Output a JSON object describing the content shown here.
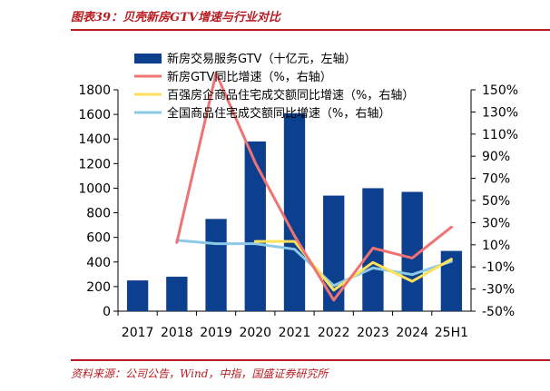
{
  "page": {
    "title": "图表39：贝壳新房GTV增速与行业对比",
    "source": "资料来源：公司公告，Wind，中指，国盛证券研究所"
  },
  "chart_data": {
    "type": "bar",
    "categories": [
      "2017",
      "2018",
      "2019",
      "2020",
      "2021",
      "2022",
      "2023",
      "2024",
      "25H1"
    ],
    "left_axis": {
      "min": 0,
      "max": 1800,
      "ticks": [
        "0",
        "200",
        "400",
        "600",
        "800",
        "1000",
        "1200",
        "1400",
        "1600",
        "1800"
      ]
    },
    "right_axis": {
      "min": -50,
      "max": 150,
      "ticks": [
        "-50%",
        "-30%",
        "-10%",
        "10%",
        "30%",
        "50%",
        "70%",
        "90%",
        "110%",
        "130%",
        "150%"
      ]
    },
    "series": [
      {
        "name": "新房交易服务GTV（十亿元，左轴）",
        "type": "bar",
        "axis": "left",
        "color": "#0d3f8f",
        "values": [
          250,
          280,
          750,
          1380,
          1610,
          940,
          1000,
          970,
          490
        ]
      },
      {
        "name": "新房GTV同比增速（%，右轴）",
        "type": "line",
        "axis": "right",
        "color": "#f07373",
        "values": [
          null,
          12,
          165,
          84,
          18,
          -40,
          7,
          -2,
          26
        ]
      },
      {
        "name": "百强房企商品住宅成交额同比增速（%，右轴）",
        "type": "line",
        "axis": "right",
        "color": "#ffe15a",
        "values": [
          null,
          null,
          null,
          13,
          13,
          -31,
          -6,
          -23,
          -3
        ]
      },
      {
        "name": "全国商品住宅成交额同比增速（%，右轴）",
        "type": "line",
        "axis": "right",
        "color": "#8cc9e6",
        "values": [
          null,
          14,
          11,
          11,
          6,
          -27,
          -11,
          -17,
          -5
        ]
      }
    ],
    "legend_position": "top-center",
    "grid": false
  }
}
